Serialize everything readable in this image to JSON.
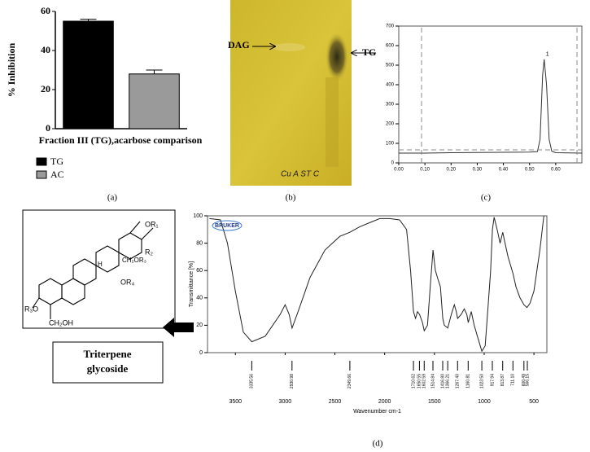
{
  "chart_data": [
    {
      "type": "bar",
      "ylabel": "% Inhibition",
      "xlabel": "Fraction III (TG),acarbose comparison",
      "ylim": [
        0,
        60
      ],
      "yticks": [
        0,
        20,
        40,
        60
      ],
      "grid": false,
      "series": [
        {
          "name": "TG",
          "color": "#000000",
          "values": [
            55
          ],
          "errors": [
            1
          ]
        },
        {
          "name": "AC",
          "color": "#9a9a9a",
          "values": [
            28
          ],
          "errors": [
            2
          ]
        }
      ]
    },
    {
      "type": "line",
      "color": "#333333",
      "peak_label": "1",
      "xlim": [
        0,
        0.7
      ],
      "ylim": [
        0,
        700
      ],
      "xticks": [
        {
          "value": 0,
          "label": "0.00"
        },
        {
          "value": 0.1,
          "label": "0.10"
        },
        {
          "value": 0.2,
          "label": "0.20"
        },
        {
          "value": 0.3,
          "label": "0.30"
        },
        {
          "value": 0.4,
          "label": "0.40"
        },
        {
          "value": 0.5,
          "label": "0.50"
        },
        {
          "value": 0.6,
          "label": "0.60"
        }
      ],
      "yticks": [
        0,
        100,
        200,
        300,
        400,
        500,
        600,
        700
      ],
      "x": [
        0,
        0.1,
        0.2,
        0.3,
        0.4,
        0.5,
        0.53,
        0.54,
        0.55,
        0.556,
        0.565,
        0.575,
        0.585,
        0.6,
        0.7
      ],
      "values": [
        50,
        50,
        52,
        53,
        54,
        55,
        58,
        120,
        450,
        530,
        400,
        120,
        60,
        52,
        50
      ]
    },
    {
      "type": "line",
      "color": "#222222",
      "logo": "BRUKER",
      "ylabel": "Transmittance [%]",
      "xlabel": "Wavenumber cm-1",
      "xlim": [
        3780,
        370
      ],
      "ylim": [
        0,
        100
      ],
      "xticks": [
        3500,
        3000,
        2500,
        2000,
        1500,
        1000,
        500
      ],
      "yticks": [
        0,
        20,
        40,
        60,
        80,
        100
      ],
      "x": [
        3760,
        3650,
        3580,
        3500,
        3420,
        3335,
        3200,
        3050,
        3000,
        2960,
        2930,
        2870,
        2750,
        2600,
        2450,
        2350,
        2300,
        2250,
        2150,
        2050,
        1950,
        1850,
        1780,
        1740,
        1710,
        1690,
        1670,
        1650,
        1620,
        1602,
        1570,
        1540,
        1514,
        1490,
        1470,
        1440,
        1416,
        1400,
        1366,
        1330,
        1300,
        1280,
        1267,
        1230,
        1200,
        1175,
        1160,
        1130,
        1100,
        1060,
        1023,
        990,
        960,
        935,
        917,
        900,
        870,
        840,
        813,
        790,
        760,
        711,
        680,
        640,
        600,
        570,
        540,
        500,
        440,
        400
      ],
      "values": [
        98,
        97,
        80,
        45,
        15,
        8,
        12,
        28,
        35,
        28,
        18,
        30,
        55,
        75,
        85,
        88,
        90,
        92,
        95,
        98,
        98,
        97,
        90,
        60,
        30,
        25,
        30,
        28,
        22,
        16,
        20,
        50,
        75,
        60,
        55,
        48,
        25,
        20,
        18,
        28,
        35,
        30,
        25,
        28,
        32,
        28,
        22,
        30,
        20,
        10,
        1,
        5,
        35,
        60,
        90,
        99,
        90,
        80,
        88,
        80,
        70,
        58,
        48,
        40,
        35,
        33,
        36,
        45,
        75,
        100
      ],
      "peaks": [
        {
          "value": 3335.56,
          "label": "3335.56"
        },
        {
          "value": 2930.98,
          "label": "2930.98"
        },
        {
          "value": 2349.66,
          "label": "2349.66"
        },
        {
          "value": 1710.62,
          "label": "1710.62"
        },
        {
          "value": 1650.55,
          "label": "1650.55"
        },
        {
          "value": 1602.59,
          "label": "1602.59"
        },
        {
          "value": 1514.84,
          "label": "1514.84"
        },
        {
          "value": 1416.8,
          "label": "1416.80"
        },
        {
          "value": 1366.21,
          "label": "1366.21"
        },
        {
          "value": 1267.4,
          "label": "1267.40"
        },
        {
          "value": 1160.81,
          "label": "1160.81"
        },
        {
          "value": 1023.5,
          "label": "1023.50"
        },
        {
          "value": 917.94,
          "label": "917.94"
        },
        {
          "value": 813.87,
          "label": "813.87"
        },
        {
          "value": 711.1,
          "label": "711.10"
        },
        {
          "value": 600.49,
          "label": "600.49"
        },
        {
          "value": 566.15,
          "label": "566.15"
        }
      ]
    }
  ],
  "tlc": {
    "dag": "DAG",
    "tg": "TG",
    "lanes": "Cu A  ST  C"
  },
  "structure": {
    "labels": [
      "OR₁",
      "R₂",
      "CH₂OR₃",
      "OR₄",
      "H",
      "R₃O",
      "CH₂OH"
    ],
    "name": [
      "Triterpene",
      "glycoside"
    ]
  },
  "panel_labels": [
    "(a)",
    "(b)",
    "(c)",
    "(d)"
  ]
}
